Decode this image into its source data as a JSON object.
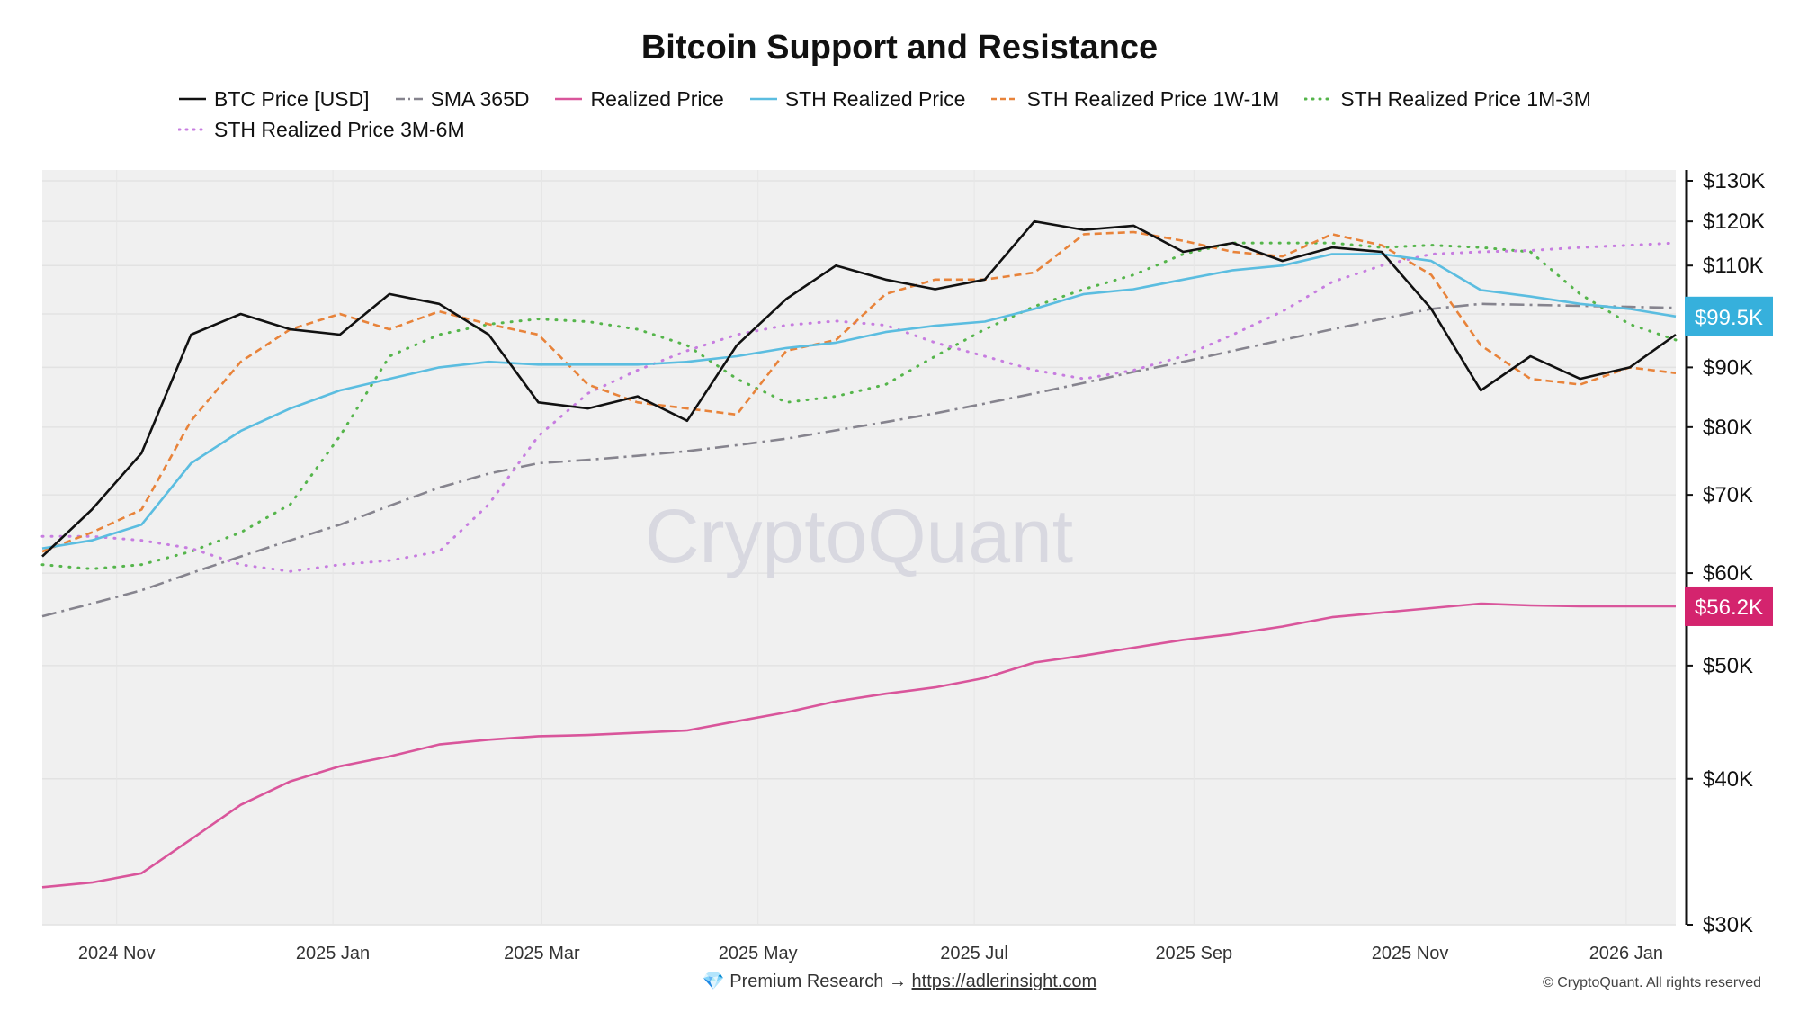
{
  "chart_data": {
    "type": "line",
    "title": "Bitcoin Support and Resistance",
    "xlabel": "",
    "ylabel": "",
    "y_scale": "log",
    "ylim": [
      30000,
      135000
    ],
    "x_range": [
      "2024-10-11",
      "2026-01-15"
    ],
    "x_start": "2024-10-11",
    "x_step_days": 14,
    "grid": true,
    "legend_position": "top",
    "x_ticks": [
      {
        "date": "2024-11-01",
        "label": "2024 Nov"
      },
      {
        "date": "2025-01-01",
        "label": "2025 Jan"
      },
      {
        "date": "2025-03-01",
        "label": "2025 Mar"
      },
      {
        "date": "2025-05-01",
        "label": "2025 May"
      },
      {
        "date": "2025-07-01",
        "label": "2025 Jul"
      },
      {
        "date": "2025-09-01",
        "label": "2025 Sep"
      },
      {
        "date": "2025-11-01",
        "label": "2025 Nov"
      },
      {
        "date": "2026-01-01",
        "label": "2026 Jan"
      }
    ],
    "y_ticks": [
      {
        "value": 130000,
        "label": "$130K"
      },
      {
        "value": 120000,
        "label": "$120K"
      },
      {
        "value": 110000,
        "label": "$110K"
      },
      {
        "value": 90000,
        "label": "$90K"
      },
      {
        "value": 80000,
        "label": "$80K"
      },
      {
        "value": 70000,
        "label": "$70K"
      },
      {
        "value": 60000,
        "label": "$60K"
      },
      {
        "value": 50000,
        "label": "$50K"
      },
      {
        "value": 40000,
        "label": "$40K"
      },
      {
        "value": 30000,
        "label": "$30K"
      }
    ],
    "grid_values": [
      130000,
      120000,
      110000,
      100000,
      90000,
      80000,
      70000,
      60000,
      50000,
      40000,
      30000
    ],
    "last_value_labels": [
      {
        "series": "STH Realized Price",
        "value": 99500,
        "label": "$99.5K",
        "color": "#36b0dc"
      },
      {
        "series": "Realized Price",
        "value": 56200,
        "label": "$56.2K",
        "color": "#d4246e"
      }
    ],
    "series": [
      {
        "name": "BTC Price [USD]",
        "color": "#111111",
        "style": "solid",
        "values": [
          62000,
          68000,
          76000,
          96000,
          100000,
          97000,
          96000,
          104000,
          102000,
          96000,
          84000,
          83000,
          85000,
          81000,
          94000,
          103000,
          110000,
          107000,
          105000,
          107000,
          120000,
          118000,
          119000,
          113000,
          115000,
          111000,
          114000,
          113000,
          101000,
          86000,
          92000,
          88000,
          90000,
          96000
        ]
      },
      {
        "name": "SMA 365D",
        "color": "#86848e",
        "style": "dashdot",
        "values": [
          55100,
          56500,
          58000,
          60000,
          62000,
          64000,
          66000,
          68500,
          71000,
          73000,
          74500,
          75000,
          75600,
          76300,
          77200,
          78200,
          79500,
          80800,
          82200,
          83800,
          85500,
          87300,
          89200,
          91000,
          93000,
          95000,
          97000,
          99000,
          101000,
          102000,
          101800,
          101600,
          101400,
          101200
        ]
      },
      {
        "name": "Realized Price",
        "color": "#d9559b",
        "style": "solid",
        "values": [
          32300,
          32600,
          33200,
          35500,
          38000,
          39800,
          41000,
          41800,
          42800,
          43200,
          43500,
          43600,
          43800,
          44000,
          44800,
          45600,
          46600,
          47300,
          47900,
          48800,
          50300,
          51000,
          51800,
          52600,
          53200,
          54000,
          55000,
          55500,
          56000,
          56500,
          56300,
          56200,
          56200,
          56200
        ]
      },
      {
        "name": "STH Realized Price",
        "color": "#5bbde0",
        "style": "solid",
        "values": [
          63000,
          64000,
          66000,
          74500,
          79400,
          83000,
          86000,
          88000,
          90000,
          91000,
          90500,
          90500,
          90500,
          91000,
          92000,
          93500,
          94500,
          96500,
          97700,
          98500,
          101000,
          104000,
          105000,
          107000,
          109000,
          110000,
          112500,
          112500,
          111000,
          104800,
          103500,
          102000,
          101000,
          99500
        ]
      },
      {
        "name": "STH Realized Price 1W-1M",
        "color": "#e8833a",
        "style": "dashed",
        "values": [
          62600,
          65000,
          68000,
          81000,
          91000,
          97000,
          100000,
          97000,
          100500,
          98000,
          96000,
          87000,
          84000,
          83000,
          82000,
          93000,
          95000,
          104000,
          107000,
          107000,
          108500,
          117000,
          117500,
          115500,
          113000,
          112000,
          117000,
          114500,
          108000,
          94000,
          88000,
          87000,
          90000,
          89000
        ]
      },
      {
        "name": "STH Realized Price 1M-3M",
        "color": "#55b54b",
        "style": "dotted",
        "values": [
          61000,
          60500,
          61000,
          62600,
          65000,
          68700,
          78600,
          92000,
          96000,
          98000,
          99000,
          98500,
          97000,
          94000,
          88000,
          84000,
          85000,
          87000,
          92000,
          97000,
          101500,
          105000,
          108000,
          112500,
          115000,
          115000,
          115000,
          114000,
          114500,
          114000,
          113000,
          104000,
          98000,
          95000
        ]
      },
      {
        "name": "STH Realized Price 3M-6M",
        "color": "#c77de0",
        "style": "dotted",
        "values": [
          64500,
          64500,
          64000,
          63000,
          61000,
          60200,
          61000,
          61500,
          62600,
          68700,
          78600,
          85500,
          89500,
          93000,
          96000,
          97800,
          98600,
          97800,
          94500,
          92000,
          89500,
          88000,
          89500,
          92000,
          96000,
          100500,
          106500,
          110000,
          112500,
          113000,
          113300,
          114000,
          114500,
          115000
        ]
      }
    ],
    "watermark": "CryptoQuant"
  },
  "footer": {
    "premium_icon": "gem-icon",
    "premium_text": "Premium Research →",
    "link": "https://adlerinsight.com",
    "copyright": "© CryptoQuant. All rights reserved"
  }
}
